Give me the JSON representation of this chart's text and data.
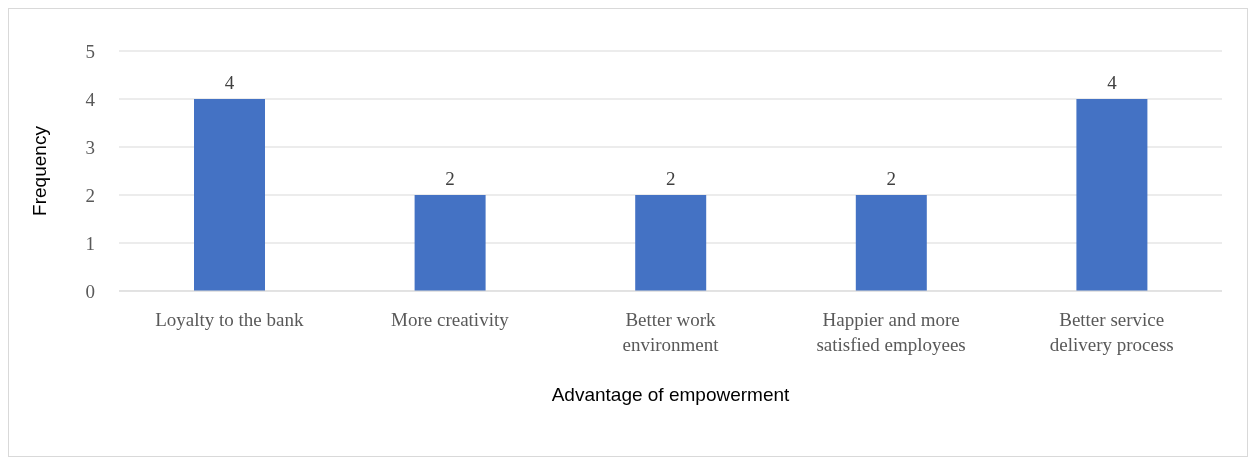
{
  "chart_data": {
    "type": "bar",
    "xlabel": "Advantage of empowerment",
    "ylabel": "Frequency",
    "categories": [
      "Loyalty to the bank",
      "More creativity",
      "Better work environment",
      "Happier and more satisfied employees",
      "Better service delivery process"
    ],
    "values": [
      4,
      2,
      2,
      2,
      4
    ],
    "color": "#4472c4",
    "ylim": [
      0,
      5
    ],
    "yticks": [
      0,
      1,
      2,
      3,
      4,
      5
    ],
    "grid": "y",
    "data_labels": true,
    "legend": false
  }
}
